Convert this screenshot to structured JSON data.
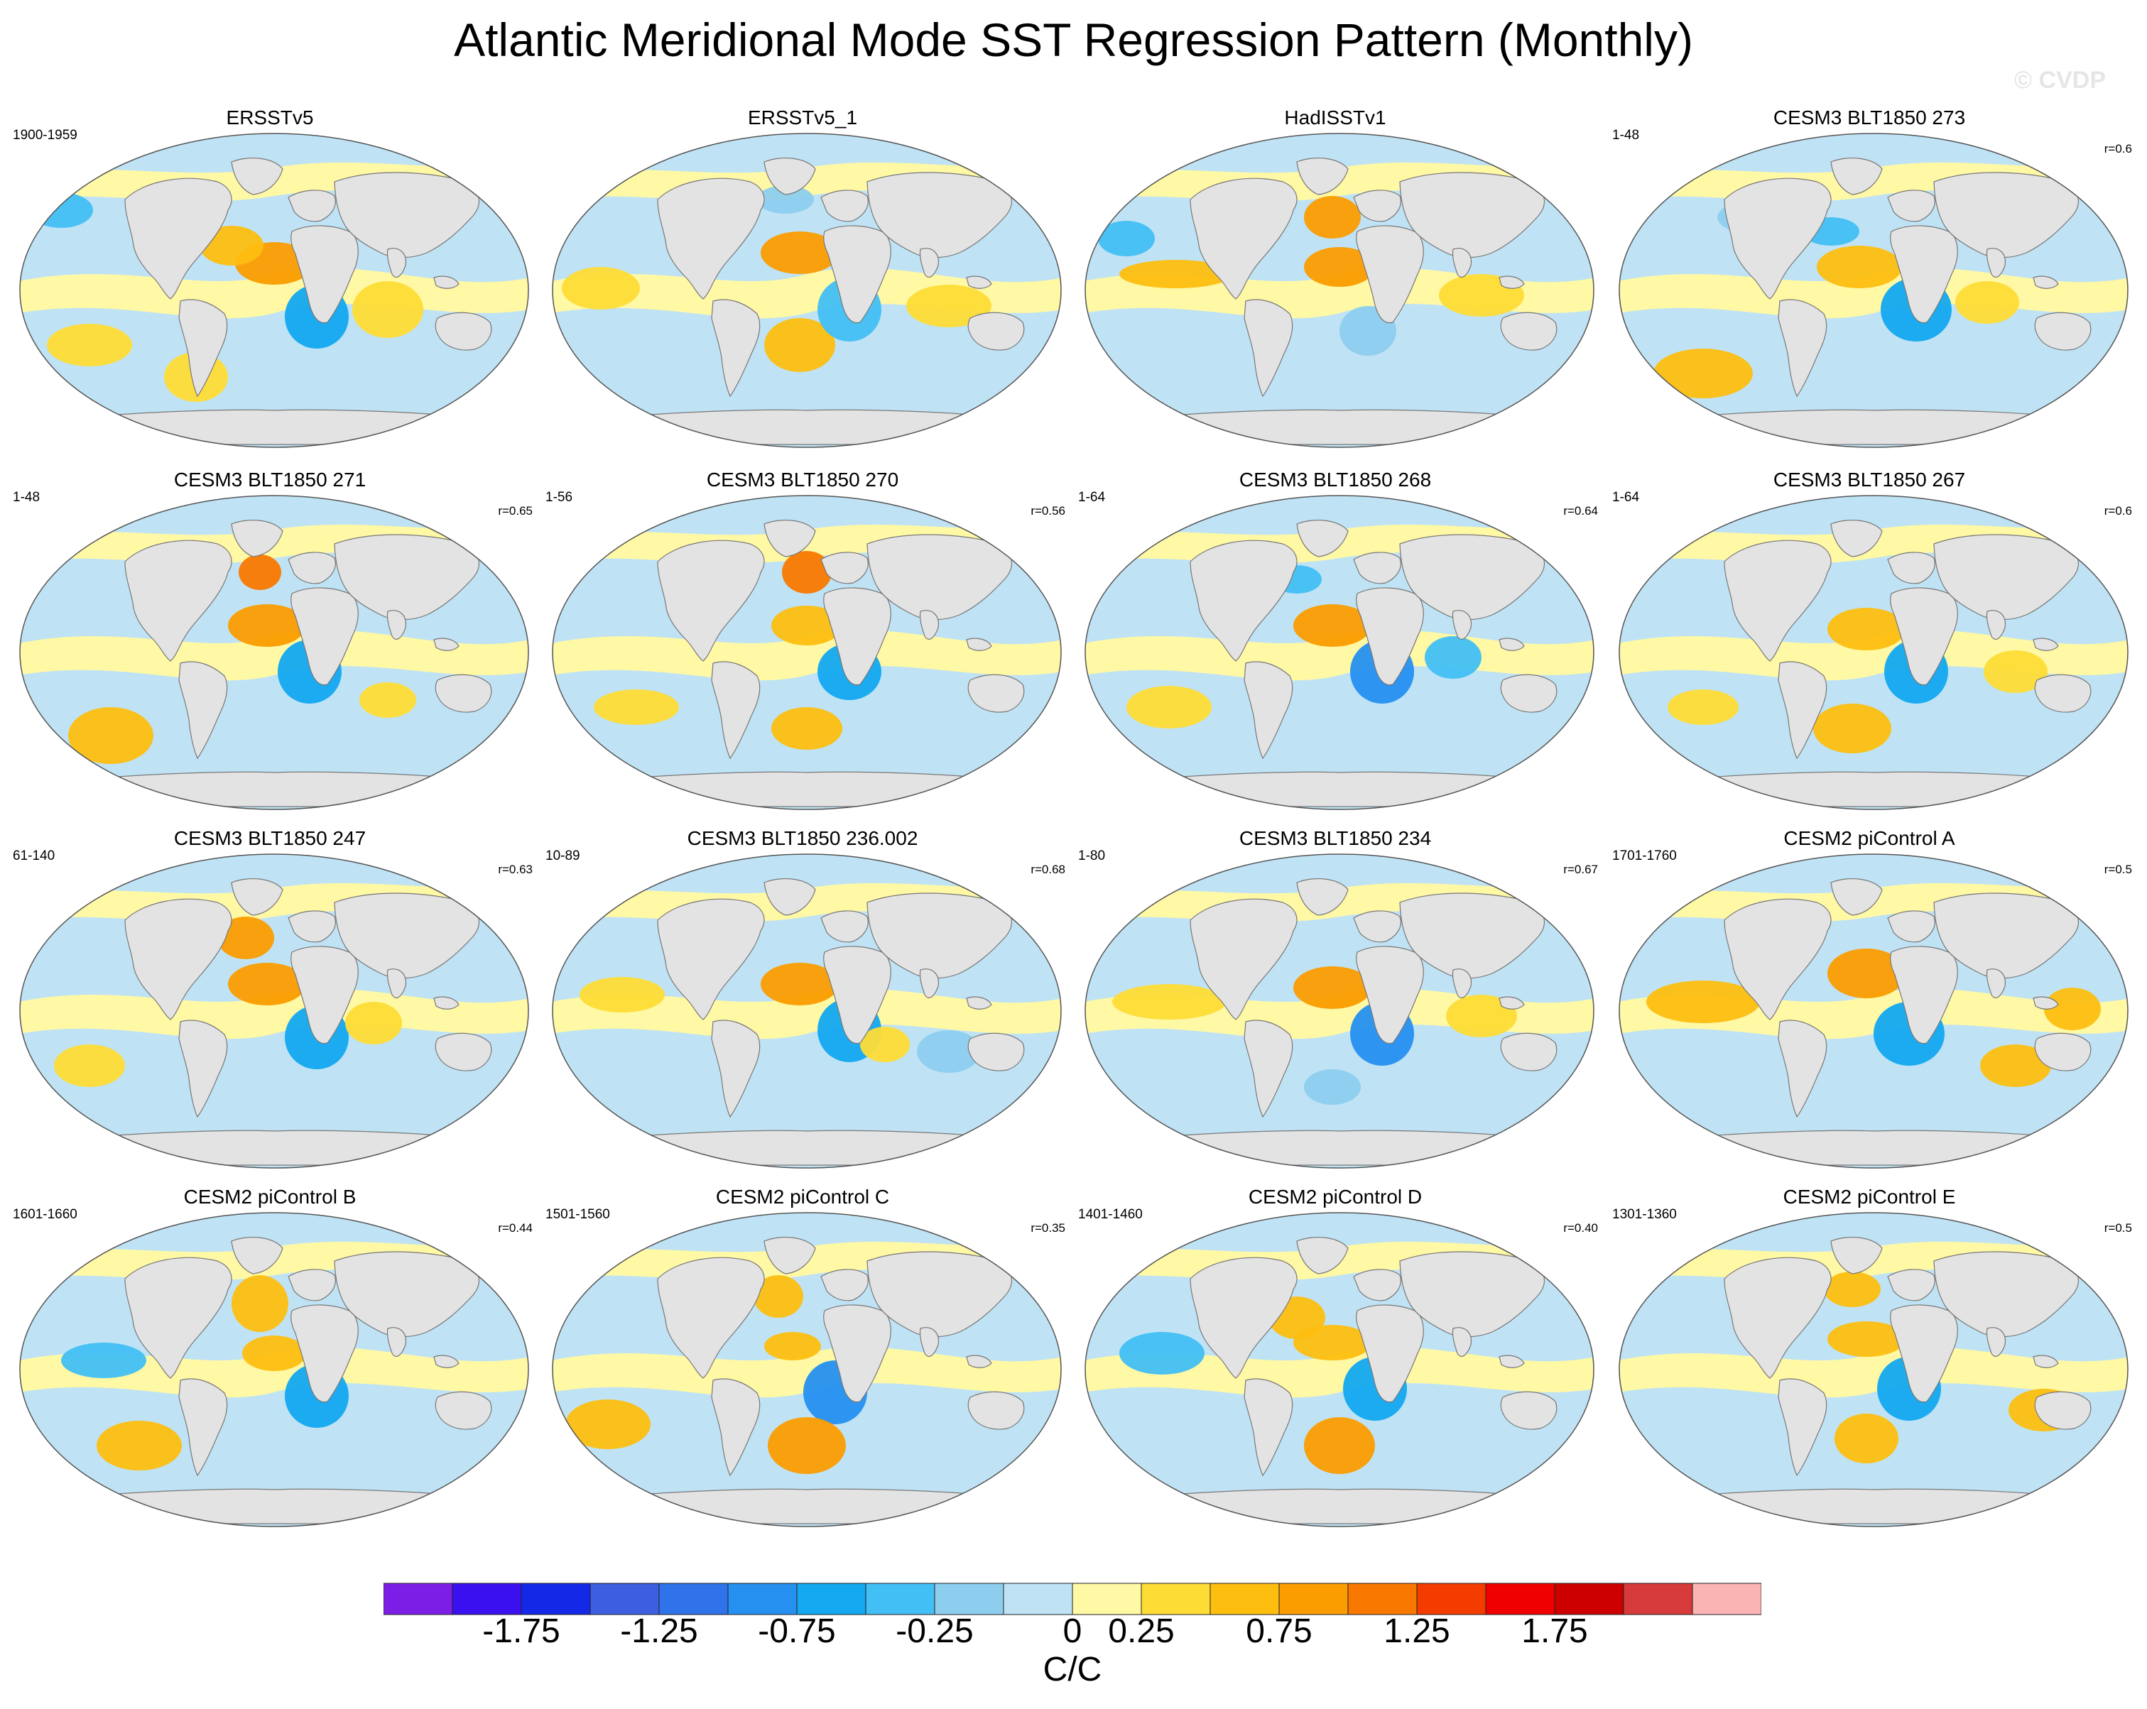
{
  "title": "Atlantic Meridional Mode SST Regression Pattern (Monthly)",
  "watermark": "© CVDP",
  "panels": [
    {
      "name": "ERSSTv5",
      "years": "1900-1959",
      "corr": ""
    },
    {
      "name": "ERSSTv5_1",
      "years": "",
      "corr": ""
    },
    {
      "name": "HadISSTv1",
      "years": "",
      "corr": ""
    },
    {
      "name": "CESM3 BLT1850 273",
      "years": "1-48",
      "corr": "r=0.6"
    },
    {
      "name": "CESM3 BLT1850 271",
      "years": "1-48",
      "corr": "r=0.65"
    },
    {
      "name": "CESM3 BLT1850 270",
      "years": "1-56",
      "corr": "r=0.56"
    },
    {
      "name": "CESM3 BLT1850 268",
      "years": "1-64",
      "corr": "r=0.64"
    },
    {
      "name": "CESM3 BLT1850 267",
      "years": "1-64",
      "corr": "r=0.6"
    },
    {
      "name": "CESM3 BLT1850 247",
      "years": "61-140",
      "corr": "r=0.63"
    },
    {
      "name": "CESM3 BLT1850 236.002",
      "years": "10-89",
      "corr": "r=0.68"
    },
    {
      "name": "CESM3 BLT1850 234",
      "years": "1-80",
      "corr": "r=0.67"
    },
    {
      "name": "CESM2 piControl A",
      "years": "1701-1760",
      "corr": "r=0.5"
    },
    {
      "name": "CESM2 piControl B",
      "years": "1601-1660",
      "corr": "r=0.44"
    },
    {
      "name": "CESM2 piControl C",
      "years": "1501-1560",
      "corr": "r=0.35"
    },
    {
      "name": "CESM2 piControl D",
      "years": "1401-1460",
      "corr": "r=0.40"
    },
    {
      "name": "CESM2 piControl E",
      "years": "1301-1360",
      "corr": "r=0.5"
    }
  ],
  "colorbar": {
    "units": "C/C",
    "labels": [
      "-1.75",
      "-1.25",
      "-0.75",
      "-0.25",
      "0",
      "0.25",
      "0.75",
      "1.25",
      "1.75"
    ],
    "colors": [
      "#7d1ee6",
      "#3a10f0",
      "#1428e8",
      "#3c5ee0",
      "#2f72ea",
      "#2590f0",
      "#13a8f0",
      "#42bff4",
      "#8dcdee",
      "#bfe3f5",
      "#fff8a4",
      "#fedc36",
      "#fdbe10",
      "#fb9c00",
      "#f87800",
      "#f43c00",
      "#f00000",
      "#cc0000",
      "#d63a3a",
      "#fab4b4"
    ]
  }
}
